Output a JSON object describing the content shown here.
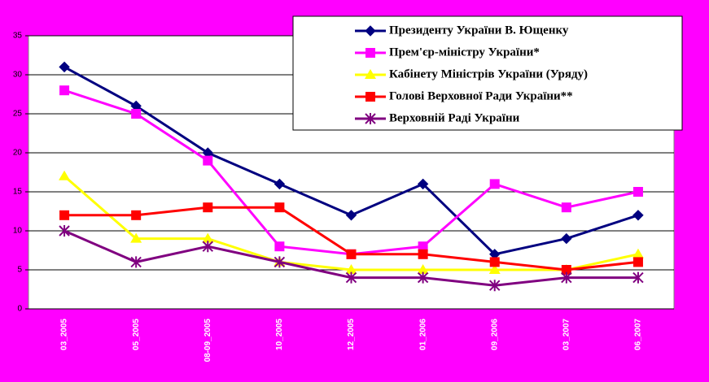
{
  "chart_data": {
    "type": "line",
    "categories": [
      "03_2005",
      "05_2005",
      "08-09_2005",
      "10_2005",
      "12_2005",
      "01_2006",
      "09_2006",
      "03_2007",
      "06_2007"
    ],
    "series": [
      {
        "name": "Президенту України В. Ющенку",
        "color": "#000080",
        "marker": "diamond",
        "values": [
          31,
          26,
          20,
          16,
          12,
          16,
          7,
          9,
          12
        ]
      },
      {
        "name": "Прем'єр-міністру України*",
        "color": "#ff00ff",
        "marker": "square",
        "values": [
          28,
          25,
          19,
          8,
          7,
          8,
          16,
          13,
          15
        ]
      },
      {
        "name": "Кабінету Міністрів України (Уряду)",
        "color": "#ffff00",
        "marker": "triangle",
        "values": [
          17,
          9,
          9,
          6,
          5,
          5,
          5,
          5,
          7
        ]
      },
      {
        "name": "Голові Верховної Ради України**",
        "color": "#ff0000",
        "marker": "square",
        "values": [
          12,
          12,
          13,
          13,
          7,
          7,
          6,
          5,
          6
        ]
      },
      {
        "name": "Верховній Раді України",
        "color": "#800080",
        "marker": "star",
        "values": [
          10,
          6,
          8,
          6,
          4,
          4,
          3,
          4,
          4
        ]
      }
    ],
    "ylim": [
      0,
      35
    ],
    "yticks": [
      0,
      5,
      10,
      15,
      20,
      25,
      30,
      35
    ],
    "grid": true
  }
}
